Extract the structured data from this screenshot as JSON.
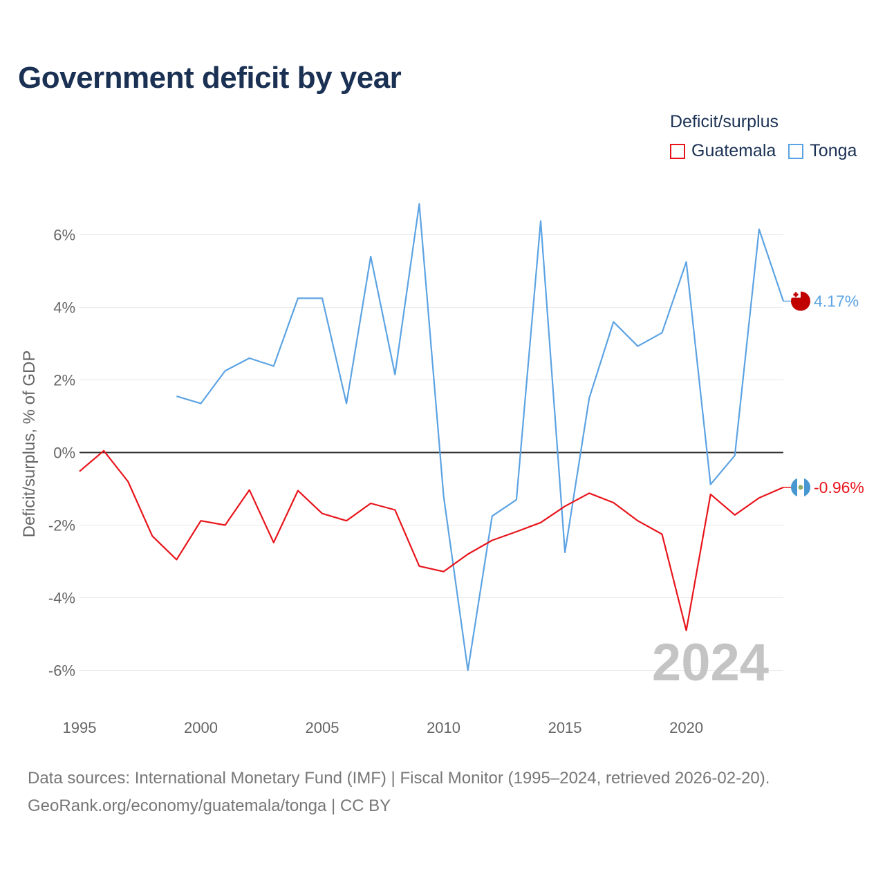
{
  "title": "Government deficit by year",
  "legend": {
    "title": "Deficit/surplus",
    "items": [
      {
        "label": "Guatemala",
        "color": "#e8141b"
      },
      {
        "label": "Tonga",
        "color": "#5ca3e3"
      }
    ]
  },
  "footer": {
    "line1": "Data sources: International Monetary Fund (IMF) | Fiscal Monitor (1995–2024, retrieved 2026-02-20).",
    "line2": "GeoRank.org/economy/guatemala/tonga | CC BY"
  },
  "chart_data": {
    "type": "line",
    "title": "Government deficit by year",
    "xlabel": "",
    "ylabel": "Deficit/surplus, % of GDP",
    "xlim": [
      1995,
      2024
    ],
    "ylim": [
      -7,
      7
    ],
    "x_ticks": [
      1995,
      2000,
      2005,
      2010,
      2015,
      2020
    ],
    "y_ticks": [
      6,
      4,
      2,
      0,
      -2,
      -4,
      -6
    ],
    "y_tick_labels": [
      "6%",
      "4%",
      "2%",
      "0%",
      "-2%",
      "-4%",
      "-6%"
    ],
    "grid": true,
    "zero_line": true,
    "current_year_label": "2024",
    "series": [
      {
        "name": "Tonga",
        "color": "#5ca3e3",
        "end_label": "4.17%",
        "points": [
          [
            1999,
            1.55
          ],
          [
            2000,
            1.35
          ],
          [
            2001,
            2.25
          ],
          [
            2002,
            2.6
          ],
          [
            2003,
            2.38
          ],
          [
            2004,
            4.25
          ],
          [
            2005,
            4.25
          ],
          [
            2006,
            1.35
          ],
          [
            2007,
            5.4
          ],
          [
            2008,
            2.15
          ],
          [
            2009,
            6.85
          ],
          [
            2010,
            -1.2
          ],
          [
            2011,
            -6.0
          ],
          [
            2012,
            -1.75
          ],
          [
            2013,
            -1.3
          ],
          [
            2014,
            6.38
          ],
          [
            2015,
            -2.75
          ],
          [
            2016,
            1.5
          ],
          [
            2017,
            3.6
          ],
          [
            2018,
            2.93
          ],
          [
            2019,
            3.3
          ],
          [
            2020,
            5.25
          ],
          [
            2021,
            -0.88
          ],
          [
            2022,
            -0.08
          ],
          [
            2023,
            6.15
          ],
          [
            2024,
            4.17
          ]
        ]
      },
      {
        "name": "Guatemala",
        "color": "#e8141b",
        "end_label": "-0.96%",
        "points": [
          [
            1995,
            -0.52
          ],
          [
            1996,
            0.05
          ],
          [
            1997,
            -0.8
          ],
          [
            1998,
            -2.3
          ],
          [
            1999,
            -2.95
          ],
          [
            2000,
            -1.88
          ],
          [
            2001,
            -2.0
          ],
          [
            2002,
            -1.03
          ],
          [
            2003,
            -2.48
          ],
          [
            2004,
            -1.05
          ],
          [
            2005,
            -1.68
          ],
          [
            2006,
            -1.88
          ],
          [
            2007,
            -1.4
          ],
          [
            2008,
            -1.58
          ],
          [
            2009,
            -3.13
          ],
          [
            2010,
            -3.28
          ],
          [
            2011,
            -2.8
          ],
          [
            2012,
            -2.42
          ],
          [
            2013,
            -2.18
          ],
          [
            2014,
            -1.93
          ],
          [
            2015,
            -1.48
          ],
          [
            2016,
            -1.12
          ],
          [
            2017,
            -1.38
          ],
          [
            2018,
            -1.88
          ],
          [
            2019,
            -2.25
          ],
          [
            2020,
            -4.9
          ],
          [
            2021,
            -1.15
          ],
          [
            2022,
            -1.72
          ],
          [
            2023,
            -1.25
          ],
          [
            2024,
            -0.96
          ]
        ]
      }
    ]
  }
}
